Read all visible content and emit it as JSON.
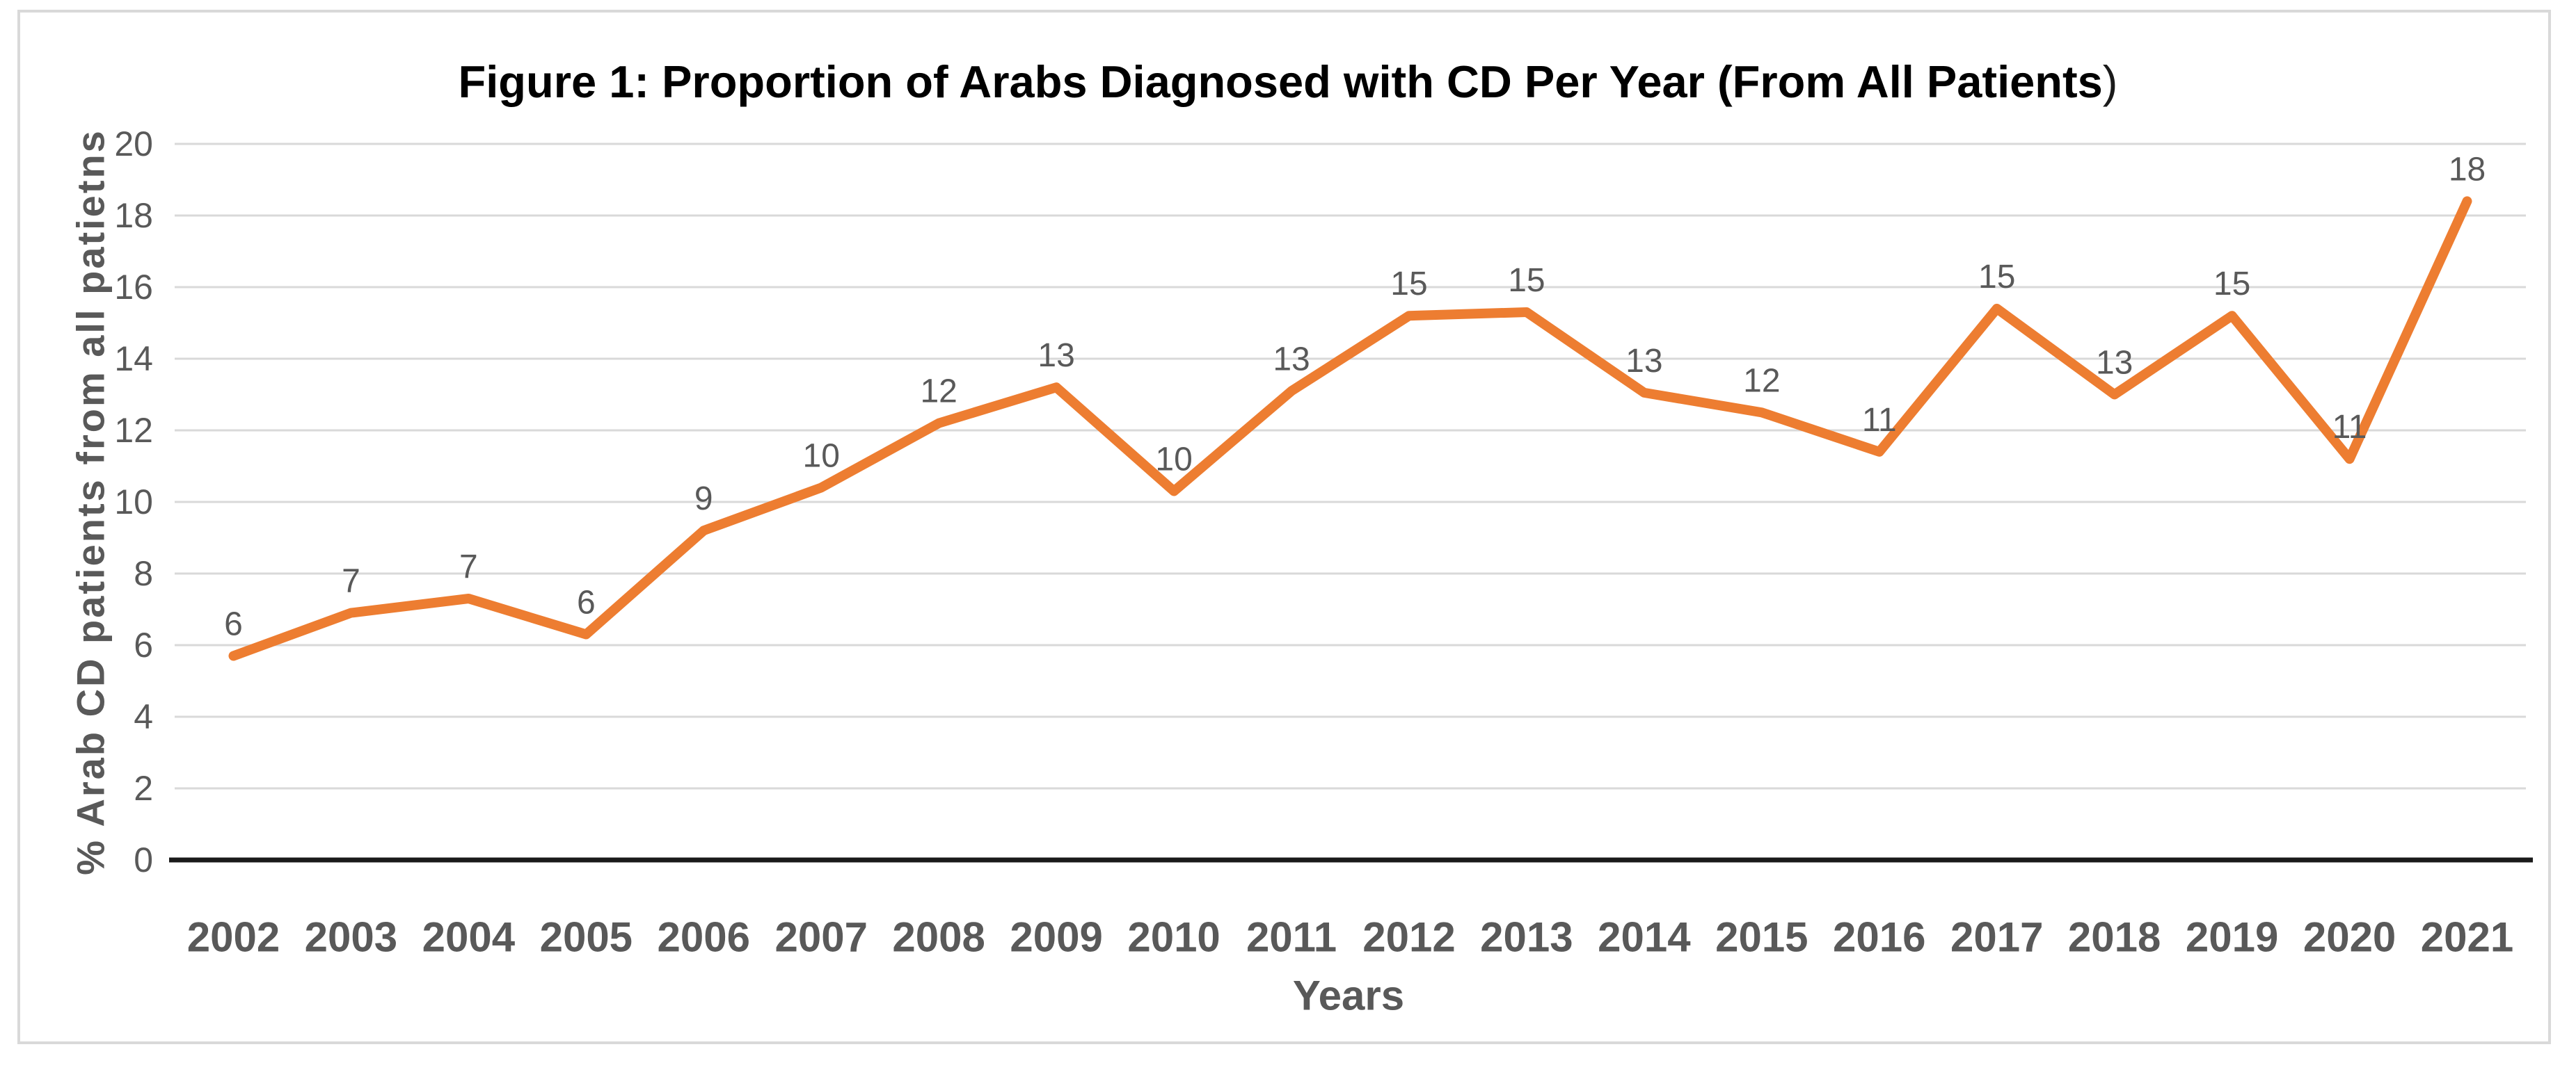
{
  "figure": {
    "title_main": "Figure 1: Proportion of Arabs Diagnosed with CD Per Year (From All Patients",
    "title_paren": ")"
  },
  "chart_data": {
    "type": "line",
    "title": "Figure 1: Proportion of Arabs Diagnosed with CD Per Year (From All Patients)",
    "xlabel": "Years",
    "ylabel": "% Arab CD patients from all patietns",
    "categories": [
      "2002",
      "2003",
      "2004",
      "2005",
      "2006",
      "2007",
      "2008",
      "2009",
      "2010",
      "2011",
      "2012",
      "2013",
      "2014",
      "2015",
      "2016",
      "2017",
      "2018",
      "2019",
      "2020",
      "2021"
    ],
    "values": [
      5.7,
      6.9,
      7.3,
      6.3,
      9.2,
      10.4,
      12.2,
      13.2,
      10.3,
      13.1,
      15.2,
      15.3,
      13.05,
      12.5,
      11.4,
      15.4,
      13.0,
      15.2,
      11.2,
      18.4
    ],
    "point_labels": [
      "6",
      "7",
      "7",
      "6",
      "9",
      "10",
      "12",
      "13",
      "10",
      "13",
      "15",
      "15",
      "13",
      "12",
      "11",
      "15",
      "13",
      "15",
      "11",
      "18"
    ],
    "ylim": [
      0,
      20
    ],
    "ytick_step": 2,
    "grid": true,
    "legend": false,
    "series_name": "% Arab CD patients",
    "colors": {
      "line": "#ED7D31",
      "grid": "#D9D9D9",
      "axis": "#1a1a1a",
      "text": "#595959",
      "title": "#000000",
      "frame": "#D9D9D9"
    }
  }
}
